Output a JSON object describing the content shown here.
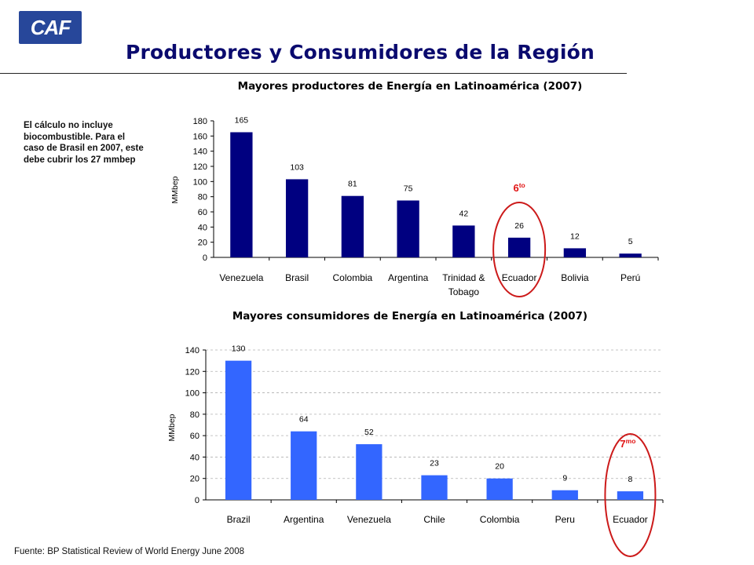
{
  "header": {
    "logo_text": "CAF",
    "title": "Productores y Consumidores de la Región"
  },
  "note": "El cálculo no incluye biocombustible. Para el caso de Brasil en 2007, este debe cubrir los 27 mmbep",
  "source": "Fuente: BP Statistical Review of World Energy June 2008",
  "chart_data": [
    {
      "type": "bar",
      "title": "Mayores productores de Energía en Latinoamérica (2007)",
      "ylabel": "MMbep",
      "xlabel": "",
      "ylim": [
        0,
        180
      ],
      "yticks": [
        0,
        20,
        40,
        60,
        80,
        100,
        120,
        140,
        160,
        180
      ],
      "grid": false,
      "categories": [
        "Venezuela",
        "Brasil",
        "Colombia",
        "Argentina",
        "Trinidad & Tobago",
        "Ecuador",
        "Bolivia",
        "Perú"
      ],
      "values": [
        165,
        103,
        81,
        75,
        42,
        26,
        12,
        5
      ],
      "bar_color": "#000080",
      "highlight": {
        "category": "Ecuador",
        "rank": "6",
        "suffix": "to",
        "color": "#cc1a1a"
      }
    },
    {
      "type": "bar",
      "title": "Mayores consumidores de Energía en Latinoamérica (2007)",
      "ylabel": "MMbep",
      "xlabel": "",
      "ylim": [
        0,
        140
      ],
      "yticks": [
        0,
        20,
        40,
        60,
        80,
        100,
        120,
        140
      ],
      "grid": true,
      "categories": [
        "Brazil",
        "Argentina",
        "Venezuela",
        "Chile",
        "Colombia",
        "Peru",
        "Ecuador"
      ],
      "values": [
        130,
        64,
        52,
        23,
        20,
        9,
        8
      ],
      "bar_color": "#3366ff",
      "highlight": {
        "category": "Ecuador",
        "rank": "7",
        "suffix": "mo",
        "color": "#cc1a1a"
      }
    }
  ]
}
